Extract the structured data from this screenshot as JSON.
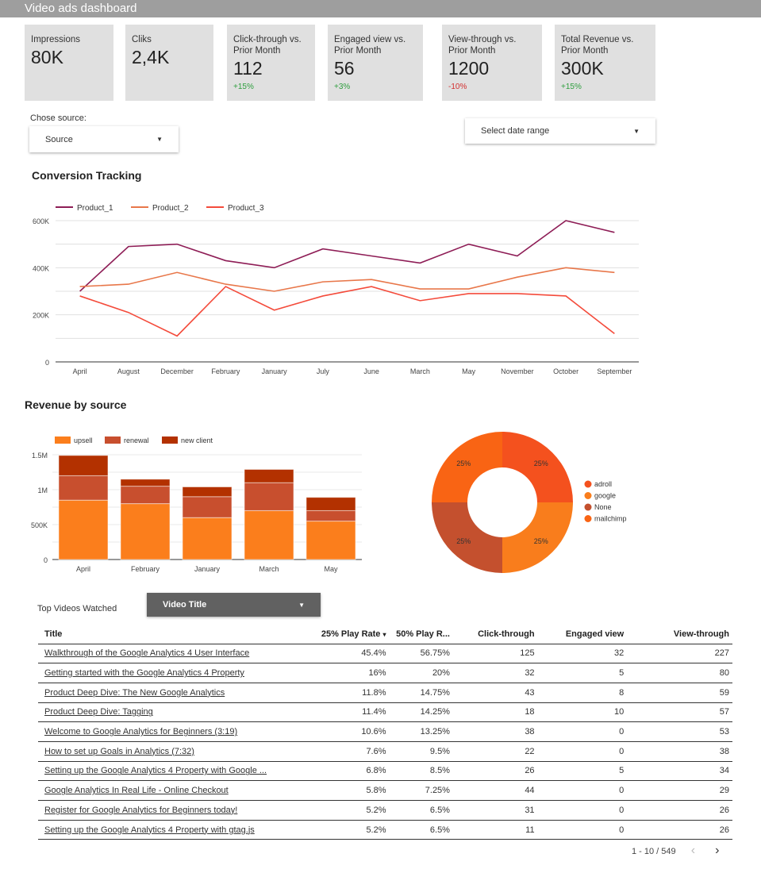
{
  "header": {
    "title": "Video ads dashboard"
  },
  "kpis": [
    {
      "label": "Impressions",
      "value": "80K",
      "delta": ""
    },
    {
      "label": "Cliks",
      "value": "2,4K",
      "delta": ""
    },
    {
      "label": "Click-through vs. Prior Month",
      "value": "112",
      "delta": "+15%",
      "trend": "positive"
    },
    {
      "label": "Engaged view vs. Prior Month",
      "value": "56",
      "delta": "+3%",
      "trend": "positive"
    },
    {
      "label": "View-through vs. Prior Month",
      "value": "1200",
      "delta": "-10%",
      "trend": "negative"
    },
    {
      "label": "Total Revenue vs. Prior Month",
      "value": "300K",
      "delta": "+15%",
      "trend": "positive"
    }
  ],
  "filters": {
    "source_label": "Chose source:",
    "source_value": "Source",
    "date_value": "Select date range"
  },
  "sections": {
    "conversion": "Conversion Tracking",
    "revenue": "Revenue by source",
    "top_videos": "Top Videos Watched",
    "video_dropdown": "Video Title"
  },
  "chart_data": [
    {
      "type": "line",
      "title": "Conversion Tracking",
      "categories": [
        "April",
        "August",
        "December",
        "February",
        "January",
        "July",
        "June",
        "March",
        "May",
        "November",
        "October",
        "September"
      ],
      "ylim": [
        0,
        600000
      ],
      "yticks": [
        "0",
        "200K",
        "400K",
        "600K"
      ],
      "grid": true,
      "legend": "top-left",
      "series": [
        {
          "name": "Product_1",
          "color": "#8e1d56",
          "values": [
            300000,
            490000,
            500000,
            430000,
            400000,
            480000,
            450000,
            420000,
            500000,
            450000,
            600000,
            550000
          ]
        },
        {
          "name": "Product_2",
          "color": "#e8774a",
          "values": [
            320000,
            330000,
            380000,
            330000,
            300000,
            340000,
            350000,
            310000,
            310000,
            360000,
            400000,
            380000
          ]
        },
        {
          "name": "Product_3",
          "color": "#f44b3b",
          "values": [
            280000,
            210000,
            110000,
            320000,
            220000,
            280000,
            320000,
            260000,
            290000,
            290000,
            280000,
            120000
          ]
        }
      ]
    },
    {
      "type": "bar",
      "stacked": true,
      "categories": [
        "April",
        "February",
        "January",
        "March",
        "May"
      ],
      "ylim": [
        0,
        1500000
      ],
      "yticks": [
        "0",
        "500K",
        "1M",
        "1.5M"
      ],
      "legend": "top-left",
      "series": [
        {
          "name": "upsell",
          "color": "#fb7e1c",
          "values": [
            850000,
            800000,
            600000,
            700000,
            550000
          ]
        },
        {
          "name": "renewal",
          "color": "#c84f2e",
          "values": [
            350000,
            250000,
            300000,
            400000,
            150000
          ]
        },
        {
          "name": "new client",
          "color": "#b33100",
          "values": [
            290000,
            100000,
            140000,
            190000,
            190000
          ]
        }
      ]
    },
    {
      "type": "pie",
      "donut": true,
      "legend": "right",
      "slices": [
        {
          "name": "adroll",
          "value": 25,
          "label": "25%",
          "color": "#f4511e"
        },
        {
          "name": "google",
          "value": 25,
          "label": "25%",
          "color": "#f97d1c"
        },
        {
          "name": "None",
          "value": 25,
          "label": "25%",
          "color": "#c4502e"
        },
        {
          "name": "mailchimp",
          "value": 25,
          "label": "25%",
          "color": "#f96414"
        }
      ]
    }
  ],
  "table": {
    "columns": [
      "Title",
      "25% Play Rate",
      "50% Play R...",
      "Click-through",
      "Engaged view",
      "View-through"
    ],
    "sort_indicator": "▾",
    "rows": [
      [
        "Walkthrough of the Google Analytics 4 User Interface",
        "45.4%",
        "56.75%",
        "125",
        "32",
        "227"
      ],
      [
        "Getting started with the Google Analytics 4 Property",
        "16%",
        "20%",
        "32",
        "5",
        "80"
      ],
      [
        "Product Deep Dive: The New Google Analytics",
        "11.8%",
        "14.75%",
        "43",
        "8",
        "59"
      ],
      [
        "Product Deep Dive: Tagging",
        "11.4%",
        "14.25%",
        "18",
        "10",
        "57"
      ],
      [
        "Welcome to Google Analytics for Beginners (3:19)",
        "10.6%",
        "13.25%",
        "38",
        "0",
        "53"
      ],
      [
        "How to set up Goals in Analytics (7:32)",
        "7.6%",
        "9.5%",
        "22",
        "0",
        "38"
      ],
      [
        "Setting up the Google Analytics 4 Property with Google ...",
        "6.8%",
        "8.5%",
        "26",
        "5",
        "34"
      ],
      [
        "Google Analytics In Real Life - Online Checkout",
        "5.8%",
        "7.25%",
        "44",
        "0",
        "29"
      ],
      [
        "Register for Google Analytics for Beginners today!",
        "5.2%",
        "6.5%",
        "31",
        "0",
        "26"
      ],
      [
        "Setting up the Google Analytics 4 Property with gtag.js",
        "5.2%",
        "6.5%",
        "11",
        "0",
        "26"
      ]
    ],
    "pagination": "1 - 10 / 549"
  }
}
